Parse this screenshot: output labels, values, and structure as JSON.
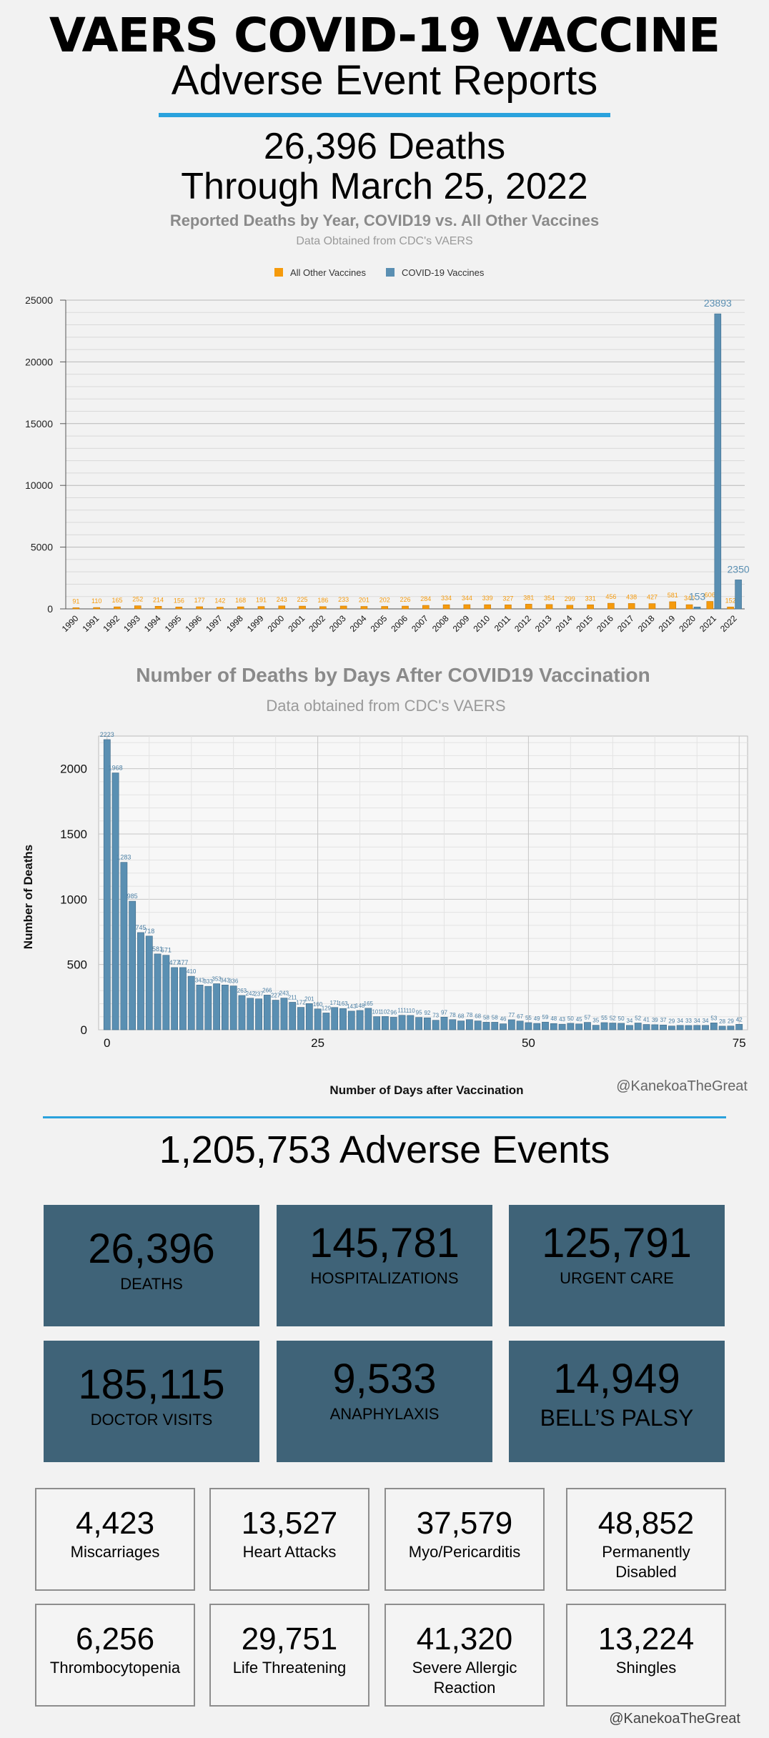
{
  "header": {
    "title": "VAERS COVID-19 VACCINE",
    "subtitle": "Adverse Event Reports",
    "deaths_headline": "26,396 Deaths",
    "through_line": "Through March 25, 2022"
  },
  "colors": {
    "accent": "#2aa2dd",
    "orange": "#f59a0c",
    "blue": "#5a8fb2",
    "card": "#3f6378"
  },
  "chart_data": [
    {
      "type": "bar",
      "title": "Reported Deaths by Year, COVID19 vs. All Other Vaccines",
      "subtitle": "Data Obtained from CDC's VAERS",
      "legend_position": "top-center",
      "categories": [
        "1990",
        "1991",
        "1992",
        "1993",
        "1994",
        "1995",
        "1996",
        "1997",
        "1998",
        "1999",
        "2000",
        "2001",
        "2002",
        "2003",
        "2004",
        "2005",
        "2006",
        "2007",
        "2008",
        "2009",
        "2010",
        "2011",
        "2012",
        "2013",
        "2014",
        "2015",
        "2016",
        "2017",
        "2018",
        "2019",
        "2020",
        "2021",
        "2022"
      ],
      "series": [
        {
          "name": "All Other Vaccines",
          "values": [
            91,
            110,
            165,
            252,
            214,
            156,
            177,
            142,
            168,
            191,
            243,
            225,
            186,
            233,
            201,
            202,
            226,
            284,
            334,
            344,
            339,
            327,
            381,
            354,
            299,
            331,
            456,
            438,
            427,
            581,
            340,
            606,
            152
          ]
        },
        {
          "name": "COVID-19 Vaccines",
          "values": [
            null,
            null,
            null,
            null,
            null,
            null,
            null,
            null,
            null,
            null,
            null,
            null,
            null,
            null,
            null,
            null,
            null,
            null,
            null,
            null,
            null,
            null,
            null,
            null,
            null,
            null,
            null,
            null,
            null,
            null,
            153,
            23893,
            2350
          ]
        }
      ],
      "y_ticks": [
        "0",
        "5000",
        "10000",
        "15000",
        "20000",
        "25000"
      ],
      "ylim": [
        0,
        25000
      ],
      "grid": true
    },
    {
      "type": "bar",
      "title": "Number of Deaths by Days After COVID19 Vaccination",
      "subtitle": "Data obtained from CDC's VAERS",
      "xlabel": "Number of Days after Vaccination",
      "ylabel": "Number of Deaths",
      "x_ticks": [
        "0",
        "25",
        "50",
        "75"
      ],
      "y_ticks": [
        "0",
        "500",
        "1000",
        "1500",
        "2000"
      ],
      "ylim": [
        0,
        2250
      ],
      "xlim": [
        -1,
        76
      ],
      "grid": true,
      "days": [
        0,
        1,
        2,
        3,
        4,
        5,
        6,
        7,
        8,
        9,
        10,
        11,
        12,
        13,
        14,
        15,
        16,
        17,
        18,
        19,
        20,
        21,
        22,
        23,
        24,
        25,
        26,
        27,
        28,
        29,
        30,
        31,
        32,
        33,
        34,
        35,
        36,
        37,
        38,
        39,
        40,
        41,
        42,
        43,
        44,
        45,
        46,
        47,
        48,
        49,
        50,
        51,
        52,
        53,
        54,
        55,
        56,
        57,
        58,
        59,
        60,
        61,
        62,
        63,
        64,
        65,
        66,
        67,
        68,
        69,
        70,
        71,
        72,
        73,
        74,
        75
      ],
      "values": [
        2223,
        1968,
        1283,
        985,
        745,
        718,
        581,
        571,
        477,
        477,
        410,
        343,
        333,
        353,
        343,
        336,
        263,
        242,
        237,
        266,
        227,
        243,
        211,
        172,
        201,
        160,
        129,
        171,
        163,
        143,
        148,
        165,
        101,
        102,
        96,
        111,
        110,
        95,
        92,
        73,
        97,
        78,
        68,
        78,
        68,
        58,
        58,
        46,
        77,
        67,
        55,
        49,
        59,
        48,
        43,
        50,
        45,
        57,
        35,
        55,
        52,
        50,
        34,
        52,
        41,
        39,
        37,
        29,
        34,
        33,
        34,
        34,
        53,
        28,
        29,
        42
      ],
      "labels": [
        "2223",
        "1968",
        "1283",
        "985",
        "745",
        "718",
        "581",
        "571",
        "477",
        "477",
        "410",
        "343",
        "333",
        "353",
        "343",
        "336",
        "263",
        "242",
        "237",
        "266",
        "227",
        "243",
        "211",
        "172",
        "201",
        "160",
        "129",
        "171",
        "163",
        "143",
        "148",
        "165",
        "101",
        "102",
        "96",
        "111",
        "110",
        "95",
        "92",
        "73",
        "97",
        "78",
        "68",
        "78",
        "68",
        "58",
        "58",
        "46",
        "77",
        "67",
        "55",
        "49",
        "59",
        "48",
        "43",
        "50",
        "45",
        "57",
        "35",
        "55",
        "52",
        "50",
        "34",
        "52",
        "41",
        "39",
        "37",
        "29",
        "34",
        "33",
        "34",
        "34",
        "53",
        "28",
        "29",
        "42"
      ]
    }
  ],
  "chart2_credit": "@KanekoaTheGreat",
  "events_headline": "1,205,753 Adverse Events",
  "big_stats": [
    {
      "value": "26,396",
      "label": "DEATHS"
    },
    {
      "value": "145,781",
      "label": "HOSPITALIZATIONS"
    },
    {
      "value": "125,791",
      "label": "URGENT CARE"
    },
    {
      "value": "185,115",
      "label": "DOCTOR VISITS"
    },
    {
      "value": "9,533",
      "label": "ANAPHYLAXIS"
    },
    {
      "value": "14,949",
      "label": "BELL’S PALSY"
    }
  ],
  "small_stats": [
    {
      "value": "4,423",
      "label": "Miscarriages"
    },
    {
      "value": "13,527",
      "label": "Heart Attacks"
    },
    {
      "value": "37,579",
      "label": "Myo/Pericarditis"
    },
    {
      "value": "48,852",
      "label": "Permanently Disabled"
    },
    {
      "value": "6,256",
      "label": "Thrombocytopenia"
    },
    {
      "value": "29,751",
      "label": "Life Threatening"
    },
    {
      "value": "41,320",
      "label": "Severe Allergic Reaction"
    },
    {
      "value": "13,224",
      "label": "Shingles"
    }
  ],
  "footer_credit": "@KanekoaTheGreat"
}
